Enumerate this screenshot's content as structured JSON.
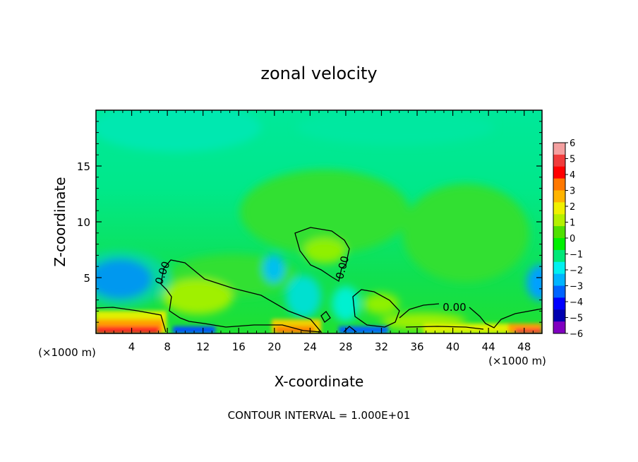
{
  "chart_data": {
    "type": "heatmap",
    "title": "zonal velocity",
    "xlabel": "X-coordinate",
    "ylabel": "Z-coordinate",
    "x_unit_left": "(×1000 m)",
    "x_unit_right": "(×1000 m)",
    "footer": "CONTOUR INTERVAL = 1.000E+01",
    "xlim": [
      0,
      50
    ],
    "ylim": [
      0,
      20
    ],
    "xticks": [
      4,
      8,
      12,
      16,
      20,
      24,
      28,
      32,
      36,
      40,
      44,
      48
    ],
    "yticks": [
      5,
      10,
      15
    ],
    "contour_label": "0.00",
    "colorbar": {
      "ticks": [
        6,
        5,
        4,
        3,
        2,
        1,
        0,
        -1,
        -2,
        -3,
        -4,
        -5,
        -6
      ],
      "tick_labels": [
        "6",
        "5",
        "4",
        "3",
        "2",
        "1",
        "0",
        "−1",
        "−2",
        "−3",
        "−4",
        "−5",
        "−6"
      ],
      "colors": [
        "#f4a0a0",
        "#f03c3c",
        "#ff0000",
        "#ff7800",
        "#ffb400",
        "#f0f000",
        "#b4f000",
        "#50e000",
        "#00f000",
        "#00e878",
        "#00f0f0",
        "#00b4ff",
        "#0064ff",
        "#0000ff",
        "#0000b0",
        "#8000c0"
      ]
    },
    "background_value": -0.5
  }
}
